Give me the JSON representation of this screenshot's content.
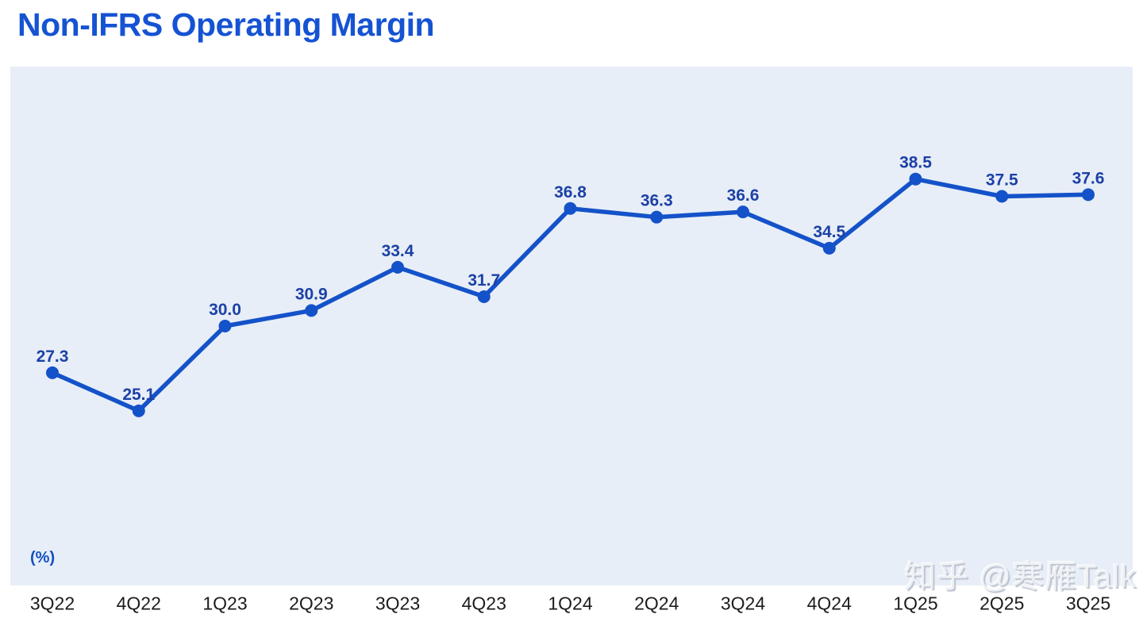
{
  "page_title": "Non-IFRS Operating Margin",
  "chart_data": {
    "type": "line",
    "title": "Non-IFRS Operating Margin",
    "unit_label": "(%)",
    "xlabel": "",
    "ylabel": "(%)",
    "categories": [
      "3Q22",
      "4Q22",
      "1Q23",
      "2Q23",
      "3Q23",
      "4Q23",
      "1Q24",
      "2Q24",
      "3Q24",
      "4Q24",
      "1Q25",
      "2Q25",
      "3Q25"
    ],
    "series": [
      {
        "name": "Non-IFRS Operating Margin",
        "values": [
          27.3,
          25.1,
          30.0,
          30.9,
          33.4,
          31.7,
          36.8,
          36.3,
          36.6,
          34.5,
          38.5,
          37.5,
          37.6
        ]
      }
    ],
    "value_labels_shown": true,
    "value_label_decimals": 1,
    "grid": false,
    "legend_position": "none",
    "ylim": [
      15,
      45
    ]
  },
  "watermark": {
    "text": "知乎 @寒雁Talk"
  },
  "theme": {
    "page_bg": "#ffffff",
    "title_color": "#1553d3",
    "panel_bg": "#e8eef7",
    "line_color": "#1452c9",
    "point_color": "#1452c9",
    "value_label_color": "#1c41a6",
    "unit_label_color": "#1450c4",
    "axis_label_color": "#1c1c1c",
    "watermark_color": "#eff1f5",
    "watermark_shadow": "#bcc4cf"
  }
}
